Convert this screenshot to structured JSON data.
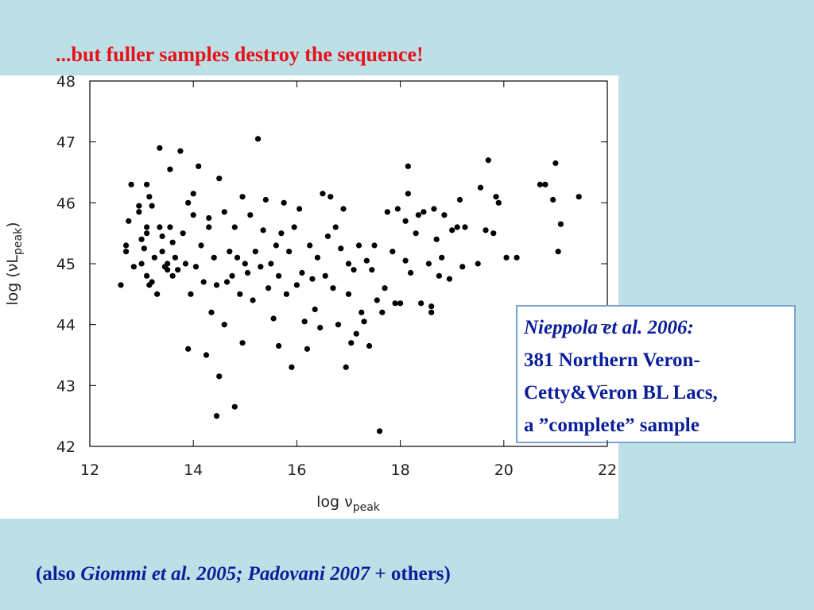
{
  "slide_title": "...but fuller samples destroy the sequence!",
  "chart_data": {
    "type": "scatter",
    "xlabel": [
      "log ν",
      "peak"
    ],
    "ylabel": [
      "log (νL",
      "peak",
      ")"
    ],
    "xlim": [
      12,
      22
    ],
    "ylim": [
      42,
      48
    ],
    "xticks": [
      12,
      14,
      16,
      18,
      20,
      22
    ],
    "yticks": [
      42,
      43,
      44,
      45,
      46,
      47,
      48
    ],
    "color": "#000000",
    "x": [
      12.6,
      12.7,
      12.7,
      12.75,
      12.8,
      12.85,
      12.95,
      12.95,
      13.0,
      13.0,
      13.05,
      13.1,
      13.1,
      13.1,
      13.15,
      13.2,
      13.1,
      13.15,
      13.2,
      13.25,
      13.3,
      13.35,
      13.35,
      13.4,
      13.4,
      13.45,
      13.5,
      13.5,
      13.55,
      13.55,
      13.6,
      13.6,
      13.65,
      13.7,
      13.75,
      13.8,
      13.85,
      13.9,
      13.95,
      13.9,
      14.0,
      14.0,
      14.05,
      14.1,
      14.15,
      14.2,
      14.25,
      14.3,
      14.3,
      14.35,
      14.4,
      14.45,
      14.5,
      14.5,
      14.45,
      14.6,
      14.6,
      14.65,
      14.7,
      14.75,
      14.8,
      14.85,
      14.8,
      14.9,
      14.95,
      14.95,
      15.0,
      15.05,
      15.1,
      15.15,
      15.2,
      15.25,
      15.3,
      15.35,
      15.4,
      15.45,
      15.5,
      15.55,
      15.6,
      15.65,
      15.65,
      15.7,
      15.75,
      15.8,
      15.85,
      15.9,
      15.95,
      16.0,
      16.05,
      16.1,
      16.15,
      16.2,
      16.25,
      16.3,
      16.35,
      16.4,
      16.45,
      16.5,
      16.55,
      16.6,
      16.65,
      16.7,
      16.75,
      16.8,
      16.85,
      16.9,
      16.95,
      17.0,
      17.0,
      17.05,
      17.1,
      17.15,
      17.2,
      17.25,
      17.3,
      17.35,
      17.4,
      17.45,
      17.5,
      17.55,
      17.6,
      17.65,
      17.7,
      17.75,
      17.85,
      17.9,
      17.95,
      18.0,
      18.1,
      18.1,
      18.15,
      18.15,
      18.2,
      18.3,
      18.35,
      18.4,
      18.45,
      18.55,
      18.6,
      18.6,
      18.65,
      18.7,
      18.75,
      18.8,
      18.85,
      18.95,
      19.0,
      19.1,
      19.15,
      19.2,
      19.25,
      19.5,
      19.55,
      19.65,
      19.7,
      19.8,
      19.85,
      19.9,
      20.05,
      20.25,
      20.7,
      20.8,
      20.95,
      21.0,
      21.05,
      21.1,
      21.45
    ],
    "y": [
      44.65,
      45.3,
      45.2,
      45.7,
      46.3,
      44.95,
      45.85,
      45.95,
      45.4,
      45.0,
      45.25,
      45.6,
      45.5,
      46.3,
      46.1,
      45.95,
      44.8,
      44.65,
      44.7,
      45.1,
      44.5,
      46.9,
      45.6,
      45.2,
      45.45,
      44.95,
      45.0,
      44.9,
      45.6,
      46.55,
      45.35,
      44.8,
      45.1,
      44.9,
      46.85,
      45.5,
      45.0,
      46.0,
      44.5,
      43.6,
      46.15,
      45.8,
      44.95,
      46.6,
      45.3,
      44.7,
      43.5,
      45.75,
      45.6,
      44.2,
      45.1,
      44.65,
      46.4,
      43.15,
      42.5,
      45.85,
      44.0,
      44.7,
      45.2,
      44.8,
      45.6,
      45.1,
      42.65,
      44.5,
      43.7,
      46.1,
      45.0,
      44.85,
      45.8,
      44.4,
      45.2,
      47.05,
      44.95,
      45.55,
      46.05,
      44.6,
      45.0,
      44.1,
      45.3,
      43.65,
      44.8,
      45.5,
      46.0,
      44.5,
      45.2,
      43.3,
      45.6,
      44.65,
      45.9,
      44.85,
      44.05,
      43.6,
      45.3,
      44.75,
      44.25,
      45.1,
      43.95,
      46.15,
      44.8,
      45.45,
      46.1,
      44.6,
      45.6,
      44.0,
      45.25,
      45.9,
      43.3,
      44.5,
      45.0,
      43.7,
      44.9,
      43.85,
      45.3,
      44.2,
      44.05,
      45.05,
      43.65,
      44.9,
      45.3,
      44.4,
      42.25,
      44.2,
      44.6,
      45.85,
      45.2,
      44.35,
      45.9,
      44.35,
      45.7,
      45.05,
      46.6,
      46.15,
      44.85,
      45.5,
      45.8,
      44.35,
      45.85,
      45.0,
      44.3,
      44.2,
      45.9,
      45.4,
      44.8,
      45.1,
      45.8,
      44.75,
      45.55,
      45.6,
      46.05,
      44.95,
      45.6,
      45.0,
      46.25,
      45.55,
      46.7,
      45.5,
      46.1,
      46.0,
      45.1,
      45.1,
      46.3,
      46.3,
      46.05,
      46.65,
      45.2,
      45.65,
      46.1
    ]
  },
  "annotation": [
    "Nieppola et al. 2006:",
    "381 Northern Veron-",
    "Cetty&Veron BL Lacs,",
    "a ”complete” sample"
  ],
  "footer": [
    "(also ",
    "Giommi et al. 2005; Padovani 2007",
    " + others)"
  ]
}
